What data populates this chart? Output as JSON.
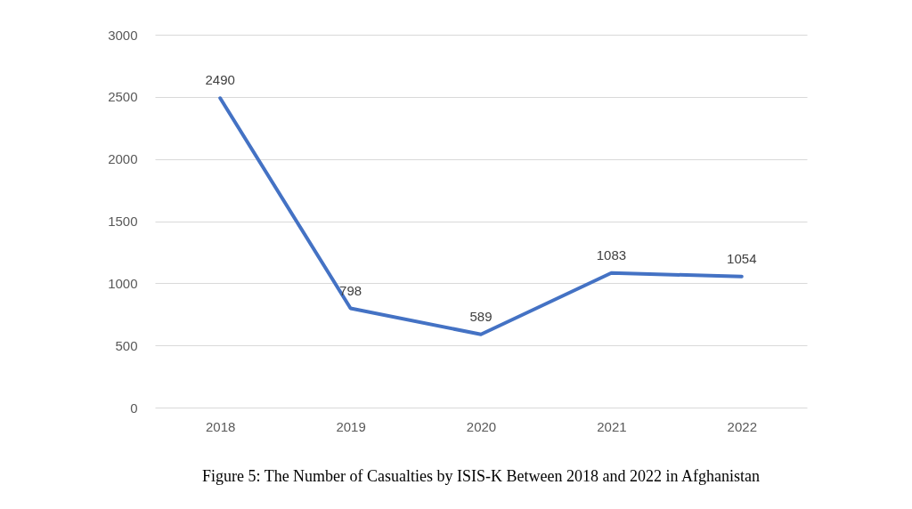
{
  "chart_data": {
    "type": "line",
    "categories": [
      "2018",
      "2019",
      "2020",
      "2021",
      "2022"
    ],
    "series": [
      {
        "color": "#4472c4",
        "values": [
          2490,
          798,
          589,
          1083,
          1054
        ]
      }
    ],
    "ylim": [
      0,
      3000
    ],
    "yticks": [
      0,
      500,
      1000,
      1500,
      2000,
      2500,
      3000
    ],
    "grid": "y",
    "data_labels": true,
    "marker": "none",
    "line_style": "solid",
    "annotations": [
      "Figure 5: The Number of Casualties by ISIS-K Between 2018 and 2022 in Afghanistan"
    ]
  }
}
